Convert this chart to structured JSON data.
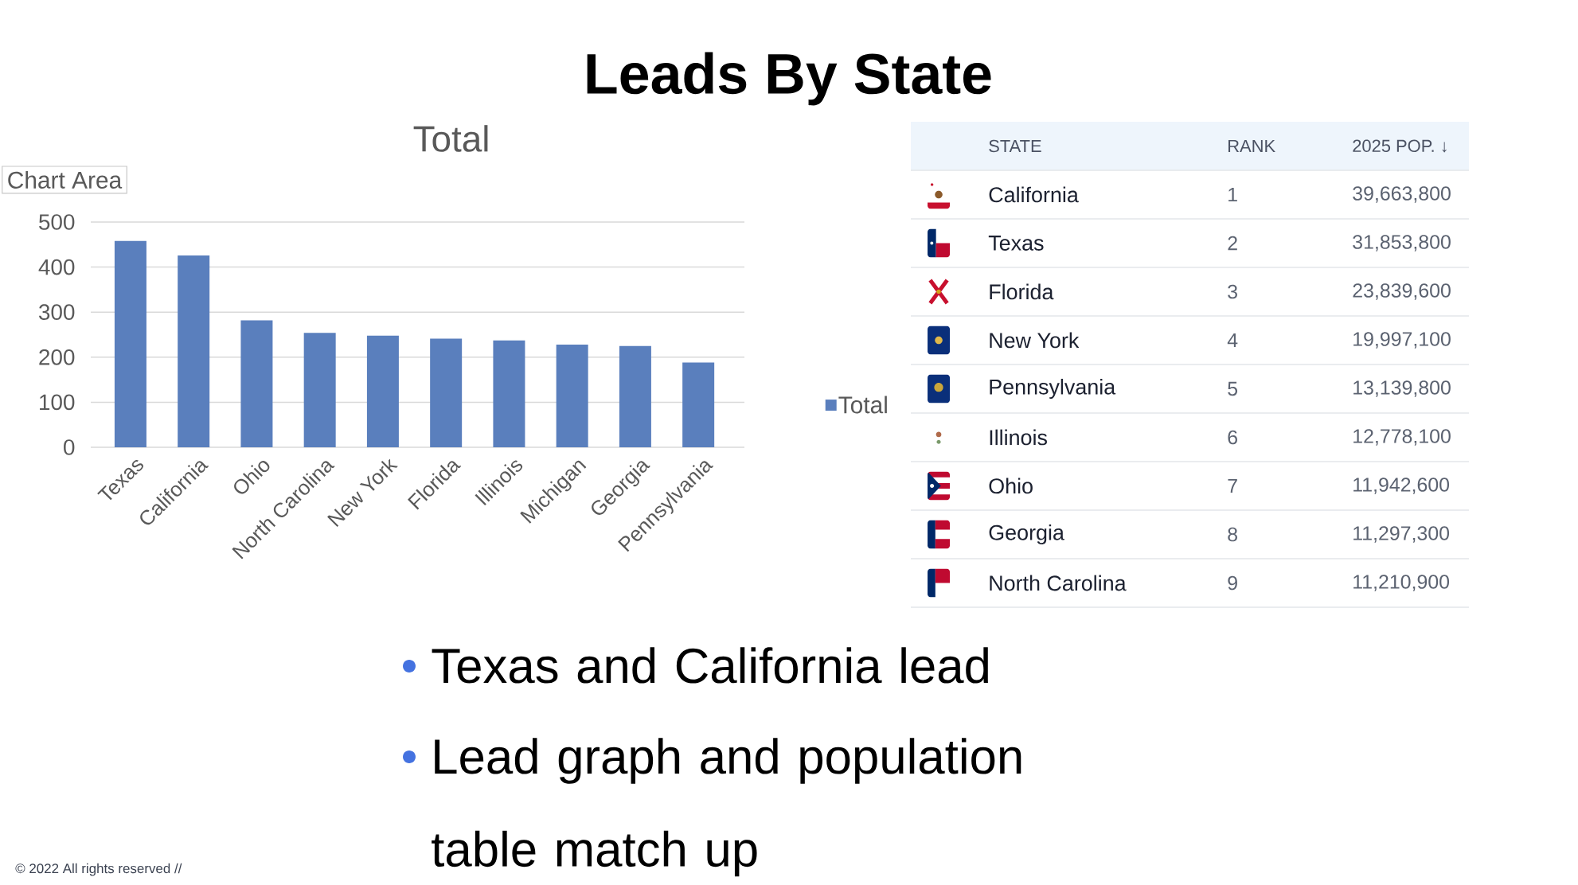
{
  "chart_data": [
    {
      "type": "bar",
      "title": "Leads By State",
      "subtitle": "Total",
      "categories": [
        "Texas",
        "California",
        "Ohio",
        "North Carolina",
        "New York",
        "Florida",
        "Illinois",
        "Michigan",
        "Georgia",
        "Pennsylvania"
      ],
      "series": [
        {
          "name": "Total",
          "color": "#5a7fbd",
          "values": [
            458,
            426,
            282,
            254,
            248,
            241,
            237,
            228,
            225,
            188
          ]
        }
      ],
      "ylim": [
        0,
        500
      ],
      "yticks": [
        0,
        100,
        200,
        300,
        400,
        500
      ],
      "grid": "y",
      "legend": "right",
      "annotations": [
        "Chart Area",
        "Texas and California lead",
        "Lead graph and population table match up",
        "© 2022 All rights reserved //"
      ]
    },
    {
      "type": "other",
      "xlabel": "STATE",
      "categories": [
        "California",
        "Texas",
        "Florida",
        "New York",
        "Pennsylvania",
        "Illinois",
        "Ohio",
        "Georgia",
        "North Carolina"
      ],
      "series": [
        {
          "name": "RANK",
          "values": [
            1,
            2,
            3,
            4,
            5,
            6,
            7,
            8,
            9
          ]
        },
        {
          "name": "2025 POP. ↓",
          "values": [
            39663800,
            31853800,
            23839600,
            19997100,
            13139800,
            12778100,
            11942600,
            11297300,
            11210900
          ],
          "value_labels": [
            "39,663,800",
            "31,853,800",
            "23,839,600",
            "19,997,100",
            "13,139,800",
            "12,778,100",
            "11,942,600",
            "11,297,300",
            "11,210,900"
          ]
        }
      ],
      "data_labels": true
    }
  ]
}
